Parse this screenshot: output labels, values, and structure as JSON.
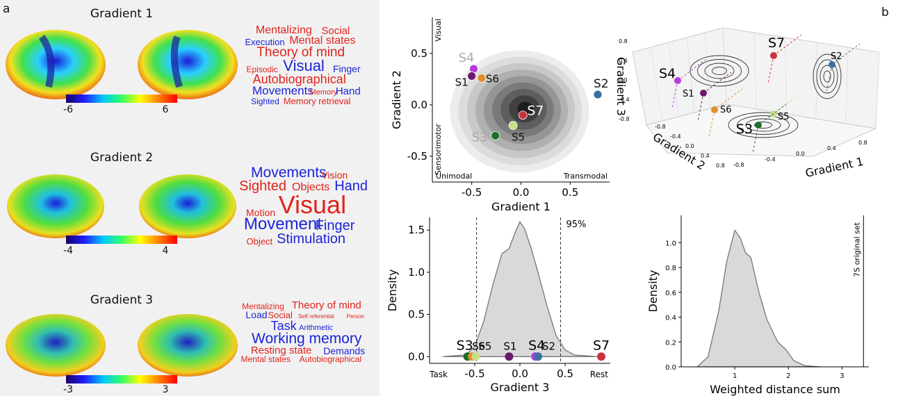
{
  "panel_a": {
    "label": "a",
    "gradients": [
      {
        "title": "Gradient 1",
        "cb_min": "-6",
        "cb_max": "6",
        "words": [
          {
            "t": "Mentalizing",
            "c": "r",
            "s": 16
          },
          {
            "t": "Social",
            "c": "r",
            "s": 15
          },
          {
            "t": "Execution",
            "c": "b",
            "s": 13
          },
          {
            "t": "Mental states",
            "c": "r",
            "s": 16
          },
          {
            "t": "Theory of mind",
            "c": "r",
            "s": 19
          },
          {
            "t": "Episodic",
            "c": "r",
            "s": 12
          },
          {
            "t": "Visual",
            "c": "b",
            "s": 22
          },
          {
            "t": "Finger",
            "c": "b",
            "s": 14
          },
          {
            "t": "Autobiographical",
            "c": "r",
            "s": 18
          },
          {
            "t": "Movements",
            "c": "b",
            "s": 17
          },
          {
            "t": "Memory",
            "c": "r",
            "s": 11
          },
          {
            "t": "Hand",
            "c": "b",
            "s": 15
          },
          {
            "t": "Sighted",
            "c": "b",
            "s": 12
          },
          {
            "t": "Memory retrieval",
            "c": "r",
            "s": 13
          }
        ]
      },
      {
        "title": "Gradient 2",
        "cb_min": "-4",
        "cb_max": "4",
        "words": [
          {
            "t": "Movements",
            "c": "b",
            "s": 21
          },
          {
            "t": "Vision",
            "c": "r",
            "s": 14
          },
          {
            "t": "Sighted",
            "c": "r",
            "s": 20
          },
          {
            "t": "Objects",
            "c": "r",
            "s": 16
          },
          {
            "t": "Hand",
            "c": "b",
            "s": 20
          },
          {
            "t": "Motion",
            "c": "r",
            "s": 14
          },
          {
            "t": "Visual",
            "c": "r",
            "s": 36
          },
          {
            "t": "Movement",
            "c": "b",
            "s": 24
          },
          {
            "t": "Finger",
            "c": "b",
            "s": 20
          },
          {
            "t": "Object",
            "c": "r",
            "s": 13
          },
          {
            "t": "Stimulation",
            "c": "b",
            "s": 20
          }
        ]
      },
      {
        "title": "Gradient 3",
        "cb_min": "-3",
        "cb_max": "3",
        "words": [
          {
            "t": "Mentalizing",
            "c": "r",
            "s": 12
          },
          {
            "t": "Theory of mind",
            "c": "r",
            "s": 15
          },
          {
            "t": "Load",
            "c": "b",
            "s": 14
          },
          {
            "t": "Social",
            "c": "r",
            "s": 13
          },
          {
            "t": "Self referential",
            "c": "r",
            "s": 8
          },
          {
            "t": "Person",
            "c": "r",
            "s": 8
          },
          {
            "t": "Task",
            "c": "b",
            "s": 18
          },
          {
            "t": "Arithmetic",
            "c": "b",
            "s": 11
          },
          {
            "t": "Working memory",
            "c": "b",
            "s": 21
          },
          {
            "t": "Resting state",
            "c": "r",
            "s": 15
          },
          {
            "t": "Demands",
            "c": "b",
            "s": 14
          },
          {
            "t": "Mental states",
            "c": "r",
            "s": 12
          },
          {
            "t": "Autobiographical",
            "c": "r",
            "s": 12
          }
        ]
      }
    ]
  },
  "panel_b": {
    "label": "b"
  },
  "chart_data": [
    {
      "type": "scatter",
      "title": "",
      "xlabel": "Gradient 1",
      "ylabel": "Gradient 2",
      "xlim": [
        -0.9,
        0.9
      ],
      "ylim": [
        -0.75,
        0.85
      ],
      "xticks": [
        "-0.5",
        "0.0",
        "0.5"
      ],
      "yticks": [
        "0.5",
        "0.0",
        "-0.5"
      ],
      "annotations": {
        "left": "Unimodal",
        "right": "Transmodal",
        "top": "Visual",
        "bottom": "Sensorimotor"
      },
      "points": [
        {
          "name": "S4",
          "x": -0.48,
          "y": 0.35,
          "color": "#b53be0"
        },
        {
          "name": "S1",
          "x": -0.5,
          "y": 0.28,
          "color": "#6a1a6e"
        },
        {
          "name": "S6",
          "x": -0.4,
          "y": 0.26,
          "color": "#e0902b"
        },
        {
          "name": "S2",
          "x": 0.78,
          "y": 0.1,
          "color": "#3a6fa0"
        },
        {
          "name": "S7",
          "x": 0.02,
          "y": -0.1,
          "color": "#cc3340"
        },
        {
          "name": "S3",
          "x": -0.26,
          "y": -0.3,
          "color": "#1e6e2e"
        },
        {
          "name": "S5",
          "x": -0.08,
          "y": -0.2,
          "color": "#c8e08a"
        }
      ]
    },
    {
      "type": "scatter3d",
      "xlabel": "Gradient 1",
      "ylabel": "Gradient 2",
      "zlabel": "Gradient 3",
      "ticks": [
        "0.8",
        "0.4",
        "0.0",
        "-0.4",
        "-0.8"
      ],
      "points": [
        {
          "name": "S7"
        },
        {
          "name": "S2"
        },
        {
          "name": "S4"
        },
        {
          "name": "S1"
        },
        {
          "name": "S6"
        },
        {
          "name": "S5"
        },
        {
          "name": "S3"
        }
      ]
    },
    {
      "type": "area",
      "xlabel": "Gradient 3",
      "ylabel": "Density",
      "xlim": [
        -1.0,
        1.0
      ],
      "ylim": [
        -0.08,
        1.65
      ],
      "xticks": [
        "-0.5",
        "0.0",
        "0.5"
      ],
      "yticks": [
        "1.5",
        "1.0",
        "0.5",
        "0.0"
      ],
      "left_note": "Task",
      "right_note": "Rest",
      "ci_label": "95%",
      "ci": [
        -0.48,
        0.45
      ],
      "curve_x": [
        -0.85,
        -0.6,
        -0.5,
        -0.4,
        -0.3,
        -0.2,
        -0.12,
        -0.05,
        0.0,
        0.05,
        0.12,
        0.2,
        0.3,
        0.4,
        0.5,
        0.6,
        0.85
      ],
      "curve_y": [
        0.0,
        0.02,
        0.12,
        0.42,
        0.85,
        1.22,
        1.28,
        1.48,
        1.6,
        1.52,
        1.3,
        1.0,
        0.6,
        0.25,
        0.08,
        0.02,
        0.0
      ],
      "points": [
        {
          "name": "S3",
          "x": -0.58,
          "color": "#1e6e2e"
        },
        {
          "name": "S6",
          "x": -0.53,
          "color": "#e0902b"
        },
        {
          "name": "S5",
          "x": -0.49,
          "color": "#c8e08a"
        },
        {
          "name": "S1",
          "x": -0.12,
          "color": "#6a1a6e"
        },
        {
          "name": "S4",
          "x": 0.17,
          "color": "#b53be0"
        },
        {
          "name": "S2",
          "x": 0.2,
          "color": "#3a6fa0"
        },
        {
          "name": "S7",
          "x": 0.9,
          "color": "#cc3340"
        }
      ]
    },
    {
      "type": "area",
      "xlabel": "Weighted distance sum",
      "ylabel": "Density",
      "xlim": [
        0,
        3.5
      ],
      "ylim": [
        0,
        1.22
      ],
      "xticks": [
        "1",
        "2",
        "3"
      ],
      "yticks": [
        "1.0",
        "0.8",
        "0.6",
        "0.4",
        "0.2",
        "0.0"
      ],
      "vline_label": "7S original set",
      "vline_x": 3.4,
      "curve_x": [
        0.3,
        0.5,
        0.7,
        0.85,
        1.0,
        1.1,
        1.2,
        1.3,
        1.45,
        1.6,
        1.8,
        1.95,
        2.1,
        2.3,
        2.6
      ],
      "curve_y": [
        0.0,
        0.08,
        0.45,
        0.85,
        1.1,
        1.04,
        0.92,
        0.88,
        0.6,
        0.38,
        0.2,
        0.14,
        0.05,
        0.01,
        0.0
      ]
    }
  ]
}
